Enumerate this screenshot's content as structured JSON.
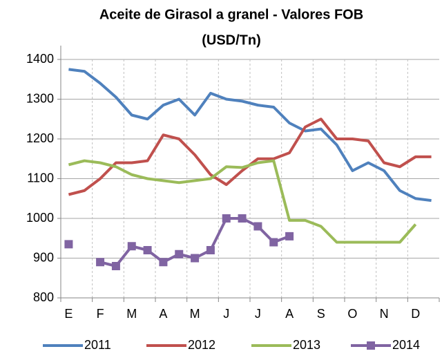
{
  "chart_data": {
    "type": "line",
    "title": "Aceite de Girasol a granel - Valores FOB",
    "subtitle": "(USD/Tn)",
    "categories": [
      "E",
      null,
      "F",
      null,
      "M",
      null,
      "A",
      null,
      "M",
      null,
      "J",
      null,
      "J",
      null,
      "A",
      null,
      "S",
      null,
      "O",
      null,
      "N",
      null,
      "D",
      null
    ],
    "series": [
      {
        "name": "2011",
        "color": "#4f81bd",
        "marker": false,
        "values": [
          1375,
          1370,
          1340,
          1305,
          1260,
          1250,
          1285,
          1300,
          1260,
          1315,
          1300,
          1295,
          1285,
          1280,
          1240,
          1220,
          1225,
          1185,
          1120,
          1140,
          1120,
          1070,
          1050,
          1045
        ]
      },
      {
        "name": "2012",
        "color": "#c0504d",
        "marker": false,
        "values": [
          1060,
          1070,
          1100,
          1140,
          1140,
          1145,
          1210,
          1200,
          1160,
          1110,
          1085,
          1120,
          1150,
          1150,
          1165,
          1230,
          1250,
          1200,
          1200,
          1195,
          1140,
          1130,
          1155,
          1155
        ]
      },
      {
        "name": "2013",
        "color": "#9bbb59",
        "marker": false,
        "values": [
          1135,
          1145,
          1140,
          1130,
          1110,
          1100,
          1095,
          1090,
          1095,
          1100,
          1130,
          1128,
          1140,
          1145,
          995,
          995,
          980,
          940,
          940,
          940,
          940,
          940,
          985,
          null
        ]
      },
      {
        "name": "2014",
        "color": "#8064a2",
        "marker": true,
        "values": [
          935,
          null,
          890,
          880,
          930,
          920,
          890,
          910,
          900,
          920,
          1000,
          1000,
          980,
          940,
          955,
          null,
          null,
          null,
          null,
          null,
          null,
          null,
          null,
          null
        ]
      }
    ],
    "ylim": [
      800,
      1400
    ],
    "yticks": [
      800,
      900,
      1000,
      1100,
      1200,
      1300,
      1400
    ],
    "grid": true
  }
}
